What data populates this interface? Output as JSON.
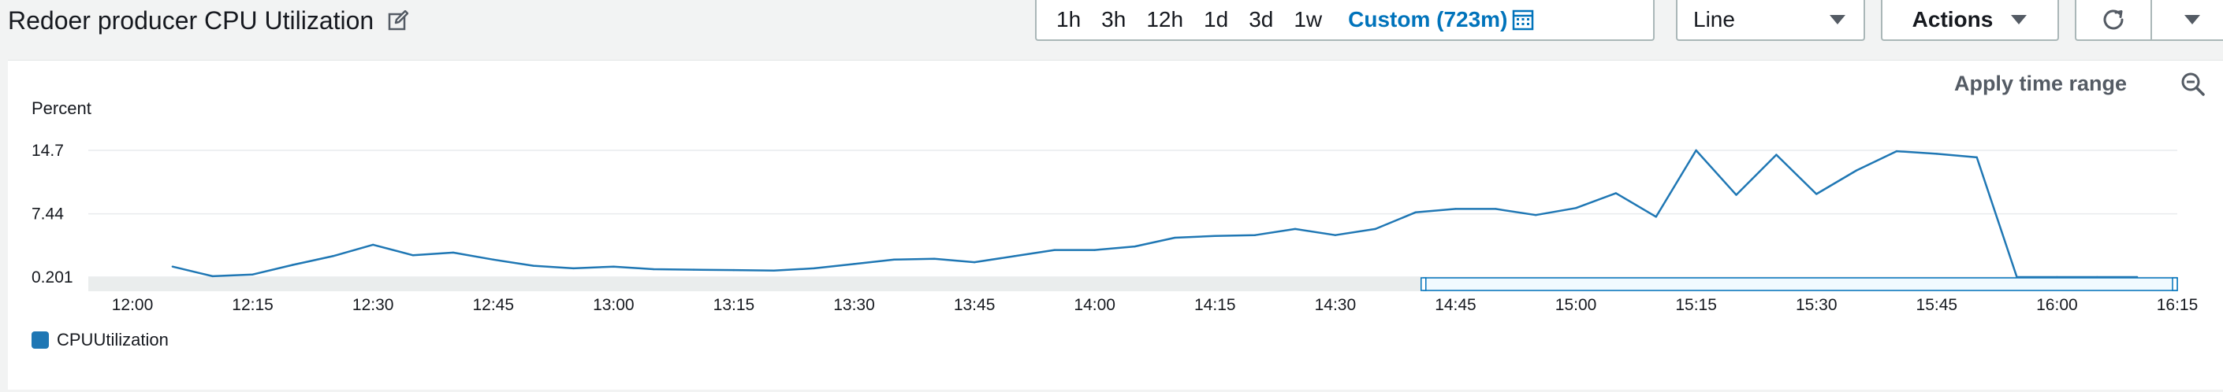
{
  "widget": {
    "title": "Redoer producer CPU Utilization",
    "edit_icon": "pencil-square-icon"
  },
  "toolbar": {
    "ranges": [
      "1h",
      "3h",
      "12h",
      "1d",
      "3d",
      "1w"
    ],
    "custom_label": "Custom (723m)",
    "calendar_icon": "calendar-icon",
    "view_type": "Line",
    "actions_label": "Actions",
    "refresh_icon": "refresh-icon",
    "accent_color": "#0073bb"
  },
  "panel": {
    "apply_time_range": "Apply time range",
    "zoom_icon": "zoom-out-icon"
  },
  "chart_data": {
    "type": "line",
    "ylabel": "Percent",
    "y_ticks": [
      0.201,
      7.44,
      14.7
    ],
    "y_tick_labels": [
      "0.201",
      "7.44",
      "14.7"
    ],
    "ylim": [
      0.201,
      14.7
    ],
    "x_tick_labels": [
      "12:00",
      "12:15",
      "12:30",
      "12:45",
      "13:00",
      "13:15",
      "13:30",
      "13:45",
      "14:00",
      "14:15",
      "14:30",
      "14:45",
      "15:00",
      "15:15",
      "15:30",
      "15:45",
      "16:00",
      "16:15"
    ],
    "x_range_minutes": [
      0,
      255
    ],
    "grid": true,
    "legend_position": "bottom-left",
    "series": [
      {
        "name": "CPUUtilization",
        "color": "#1f77b4",
        "points": [
          [
            5,
            1.4
          ],
          [
            10,
            0.3
          ],
          [
            15,
            0.5
          ],
          [
            20,
            1.6
          ],
          [
            25,
            2.6
          ],
          [
            30,
            3.9
          ],
          [
            35,
            2.7
          ],
          [
            40,
            3.0
          ],
          [
            45,
            2.2
          ],
          [
            50,
            1.5
          ],
          [
            55,
            1.2
          ],
          [
            60,
            1.4
          ],
          [
            65,
            1.1
          ],
          [
            70,
            1.05
          ],
          [
            75,
            1.0
          ],
          [
            80,
            0.95
          ],
          [
            85,
            1.2
          ],
          [
            90,
            1.7
          ],
          [
            95,
            2.2
          ],
          [
            100,
            2.3
          ],
          [
            105,
            1.9
          ],
          [
            110,
            2.6
          ],
          [
            115,
            3.3
          ],
          [
            120,
            3.3
          ],
          [
            125,
            3.7
          ],
          [
            130,
            4.7
          ],
          [
            135,
            4.9
          ],
          [
            140,
            5.0
          ],
          [
            145,
            5.7
          ],
          [
            150,
            5.0
          ],
          [
            155,
            5.7
          ],
          [
            160,
            7.6
          ],
          [
            165,
            8.0
          ],
          [
            170,
            8.0
          ],
          [
            175,
            7.3
          ],
          [
            180,
            8.1
          ],
          [
            185,
            9.8
          ],
          [
            190,
            7.1
          ],
          [
            195,
            14.7
          ],
          [
            200,
            9.6
          ],
          [
            205,
            14.2
          ],
          [
            210,
            9.7
          ],
          [
            215,
            12.4
          ],
          [
            220,
            14.6
          ],
          [
            225,
            14.3
          ],
          [
            230,
            13.9
          ],
          [
            235,
            0.201
          ],
          [
            240,
            0.201
          ],
          [
            245,
            0.201
          ],
          [
            250,
            0.201
          ]
        ]
      }
    ],
    "brush_range_minutes": [
      161,
      255
    ]
  }
}
